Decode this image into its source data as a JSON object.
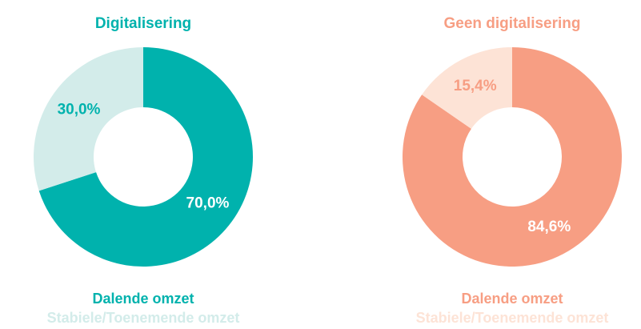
{
  "chart_data": [
    {
      "type": "pie",
      "title": "Digitalisering",
      "categories": [
        "Dalende omzet",
        "Stabiele/Toenemende omzet"
      ],
      "values": [
        70.0,
        30.0
      ],
      "value_labels": [
        "70,0%",
        "30,0%"
      ],
      "colors": [
        "#00b2ad",
        "#d3ecea"
      ]
    },
    {
      "type": "pie",
      "title": "Geen digitalisering",
      "categories": [
        "Dalende omzet",
        "Stabiele/Toenemende omzet"
      ],
      "values": [
        84.6,
        15.4
      ],
      "value_labels": [
        "84,6%",
        "15,4%"
      ],
      "colors": [
        "#f79e83",
        "#fde3d6"
      ]
    }
  ]
}
